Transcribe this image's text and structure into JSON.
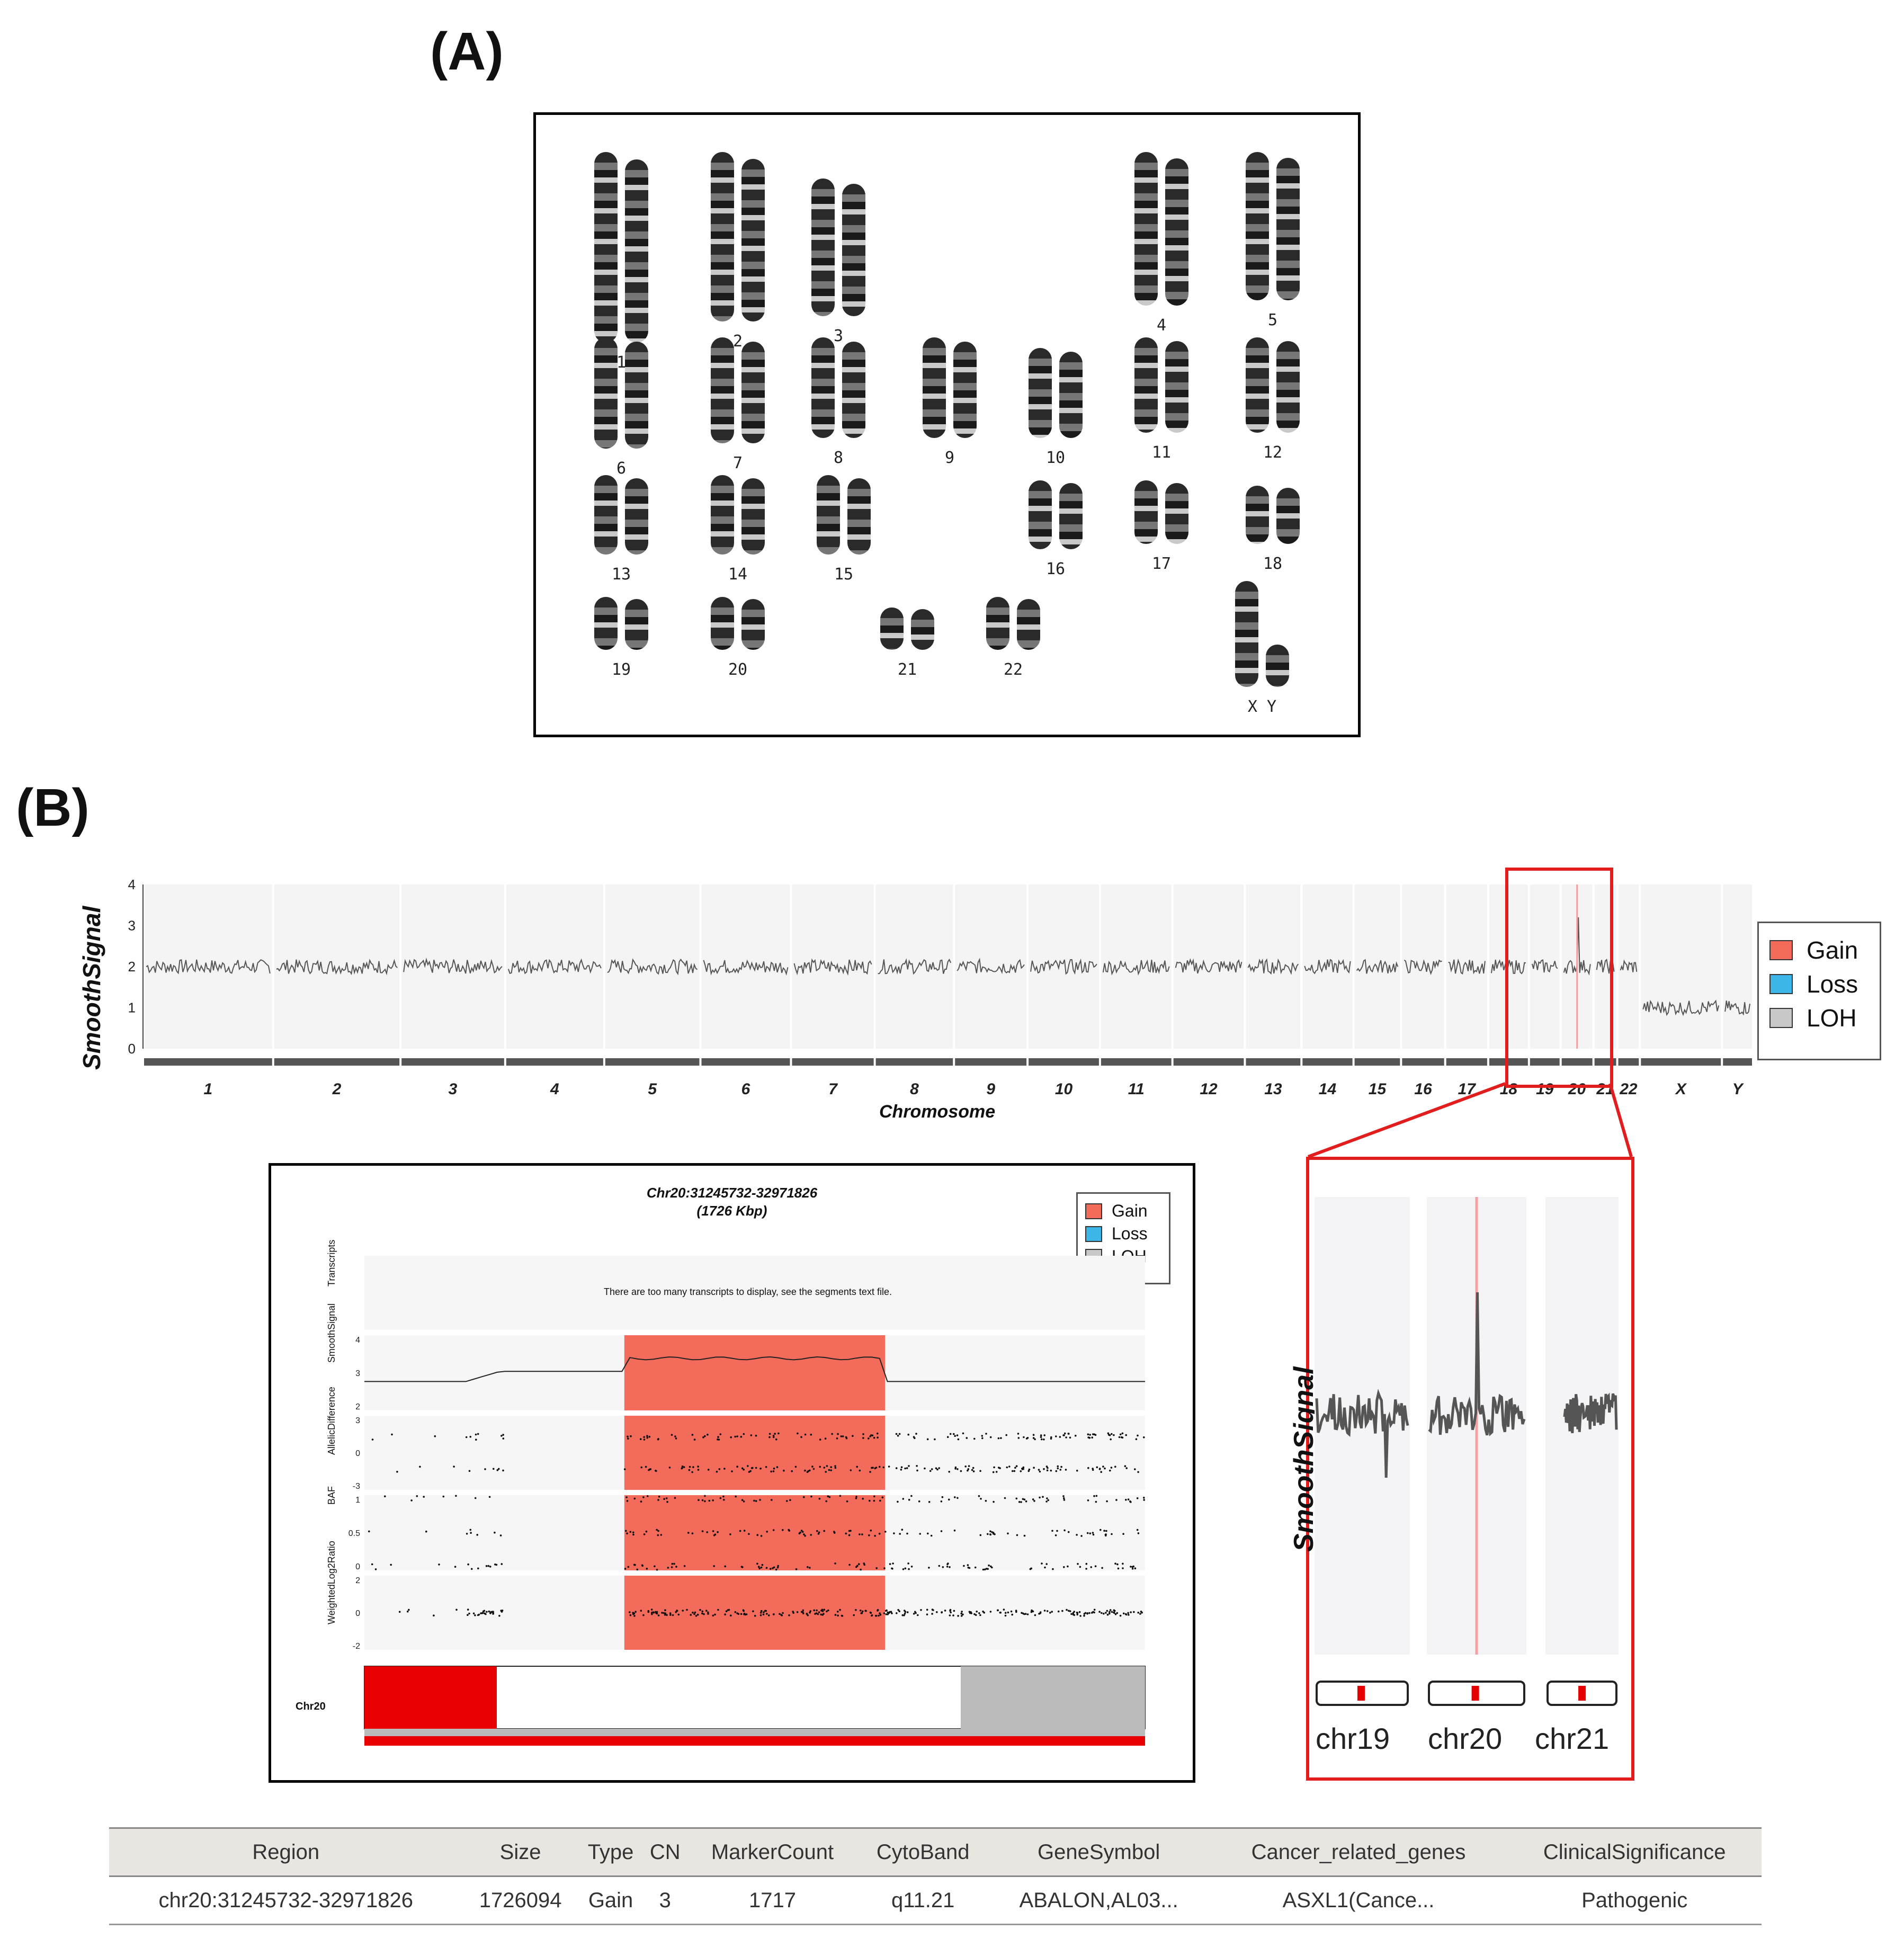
{
  "panel_a": {
    "label": "(A)"
  },
  "karyotype": [
    {
      "label": "1"
    },
    {
      "label": "2"
    },
    {
      "label": "3"
    },
    {
      "label": "4"
    },
    {
      "label": "5"
    },
    {
      "label": "6"
    },
    {
      "label": "7"
    },
    {
      "label": "8"
    },
    {
      "label": "9"
    },
    {
      "label": "10"
    },
    {
      "label": "11"
    },
    {
      "label": "12"
    },
    {
      "label": "13"
    },
    {
      "label": "14"
    },
    {
      "label": "15"
    },
    {
      "label": "16"
    },
    {
      "label": "17"
    },
    {
      "label": "18"
    },
    {
      "label": "19"
    },
    {
      "label": "20"
    },
    {
      "label": "21"
    },
    {
      "label": "22"
    },
    {
      "label": "X"
    },
    {
      "label": "Y"
    }
  ],
  "panel_b": {
    "label": "(B)"
  },
  "legend": {
    "gain": "Gain",
    "loss": "Loss",
    "loh": "LOH",
    "colors": {
      "gain": "#f26b5b",
      "loss": "#3db7e8",
      "loh": "#c8c8c8"
    }
  },
  "chart_data": [
    {
      "type": "line",
      "ylabel": "SmoothSignal",
      "xlabel": "Chromosome",
      "ylim": [
        0,
        4
      ],
      "yticks": [
        "0",
        "1",
        "2",
        "3",
        "4"
      ],
      "categories": [
        "1",
        "2",
        "3",
        "4",
        "5",
        "6",
        "7",
        "8",
        "9",
        "10",
        "11",
        "12",
        "13",
        "14",
        "15",
        "16",
        "17",
        "18",
        "19",
        "20",
        "21",
        "22",
        "X",
        "Y"
      ],
      "values": [
        2,
        2,
        2,
        2,
        2,
        2,
        2,
        2,
        2,
        2,
        2,
        2,
        2,
        2,
        2,
        2,
        2,
        2,
        2,
        2,
        2,
        2,
        1,
        1
      ],
      "highlight": {
        "chromosome": "20",
        "peak": 3.2
      }
    },
    {
      "type": "line",
      "title": "Chr20:31245732-32971826",
      "subtitle": "(1726 Kbp)",
      "transcripts_note": "There are too many transcripts to display, see the segments text file.",
      "tracks": [
        {
          "name": "Transcripts",
          "ticks": []
        },
        {
          "name": "SmoothSignal",
          "ticks": [
            "4",
            "3",
            "2"
          ]
        },
        {
          "name": "AllelicDifference",
          "ticks": [
            "3",
            "0",
            "-3"
          ]
        },
        {
          "name": "BAF",
          "ticks": [
            "1",
            "0.5",
            "0"
          ]
        },
        {
          "name": "WeightedLog2Ratio",
          "ticks": [
            "2",
            "0",
            "-2"
          ]
        }
      ],
      "gain_region": {
        "start_fraction": 0.333,
        "end_fraction": 0.667
      },
      "chrom_label": "Chr20"
    },
    {
      "type": "line",
      "ylabel": "SmoothSignal",
      "categories": [
        "chr19",
        "chr20",
        "chr21"
      ]
    }
  ],
  "table": {
    "headers": [
      "Region",
      "Size",
      "Type",
      "CN",
      "MarkerCount",
      "CytoBand",
      "GeneSymbol",
      "Cancer_related_genes",
      "ClinicalSignificance"
    ],
    "rows": [
      [
        "chr20:31245732-32971826",
        "1726094",
        "Gain",
        "3",
        "1717",
        "q11.21",
        "ABALON,AL03...",
        "ASXL1(Cance...",
        "Pathogenic"
      ]
    ]
  }
}
